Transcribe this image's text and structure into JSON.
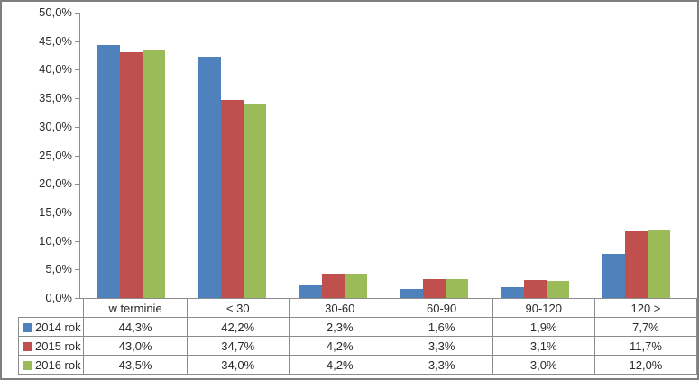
{
  "chart_data": {
    "type": "bar",
    "title": "",
    "xlabel": "",
    "ylabel": "",
    "categories": [
      "w terminie",
      "< 30",
      "30-60",
      "60-90",
      "90-120",
      "120 >"
    ],
    "series": [
      {
        "name": "2014 rok",
        "color": "#4f81bd",
        "values": [
          44.3,
          42.2,
          2.3,
          1.6,
          1.9,
          7.7
        ]
      },
      {
        "name": "2015 rok",
        "color": "#c0504d",
        "values": [
          43.0,
          34.7,
          4.2,
          3.3,
          3.1,
          11.7
        ]
      },
      {
        "name": "2016 rok",
        "color": "#9bbb59",
        "values": [
          43.5,
          34.0,
          4.2,
          3.3,
          3.0,
          12.0
        ]
      }
    ],
    "ylim": [
      0,
      50
    ],
    "ytick_step": 5,
    "ytick_labels": [
      "0,0%",
      "5,0%",
      "10,0%",
      "15,0%",
      "20,0%",
      "25,0%",
      "30,0%",
      "35,0%",
      "40,0%",
      "45,0%",
      "50,0%"
    ],
    "grid": false,
    "legend_position": "table-left"
  },
  "table": {
    "columns": [
      "w terminie",
      "< 30",
      "30-60",
      "60-90",
      "90-120",
      "120 >"
    ],
    "row_labels": [
      "2014 rok",
      "2015 rok",
      "2016 rok"
    ],
    "rows": [
      [
        "44,3%",
        "42,2%",
        "2,3%",
        "1,6%",
        "1,9%",
        "7,7%"
      ],
      [
        "43,0%",
        "34,7%",
        "4,2%",
        "3,3%",
        "3,1%",
        "11,7%"
      ],
      [
        "43,5%",
        "34,0%",
        "4,2%",
        "3,3%",
        "3,0%",
        "12,0%"
      ]
    ]
  },
  "colors": {
    "series_2014": "#4f81bd",
    "series_2015": "#c0504d",
    "series_2016": "#9bbb59",
    "axis_line": "#8c8c8c",
    "frame_border": "#7f7f7f"
  }
}
